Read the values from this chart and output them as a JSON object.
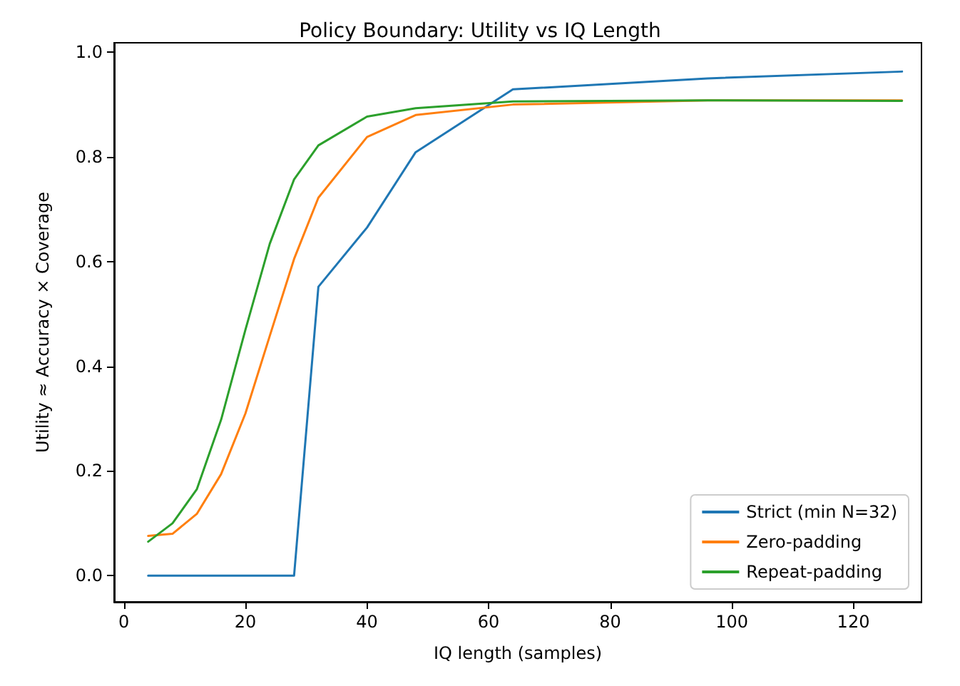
{
  "chart_data": {
    "type": "line",
    "title": "Policy Boundary: Utility vs IQ Length",
    "xlabel": "IQ length (samples)",
    "ylabel": "Utility ≈ Accuracy × Coverage",
    "x": [
      4,
      8,
      12,
      16,
      20,
      24,
      28,
      32,
      40,
      48,
      64,
      96,
      128
    ],
    "series": [
      {
        "name": "Strict (min N=32)",
        "color": "#1f77b4",
        "values": [
          0,
          0,
          0,
          0,
          0,
          0,
          0,
          0.552,
          0.665,
          0.809,
          0.929,
          0.95,
          0.963
        ]
      },
      {
        "name": "Zero-padding",
        "color": "#ff7f0e",
        "values": [
          0.076,
          0.08,
          0.118,
          0.194,
          0.31,
          0.458,
          0.605,
          0.722,
          0.838,
          0.88,
          0.9,
          0.908,
          0.908
        ]
      },
      {
        "name": "Repeat-padding",
        "color": "#2ca02c",
        "values": [
          0.065,
          0.1,
          0.165,
          0.298,
          0.47,
          0.634,
          0.757,
          0.822,
          0.877,
          0.893,
          0.906,
          0.908,
          0.907
        ]
      }
    ],
    "xlim": [
      -1.6,
      131.2
    ],
    "xticks": [
      0,
      20,
      40,
      60,
      80,
      100,
      120
    ],
    "ylim": [
      -0.05,
      1.018
    ],
    "yticks": [
      {
        "value": 0,
        "label": "0.0"
      },
      {
        "value": 0.2,
        "label": "0.2"
      },
      {
        "value": 0.4,
        "label": "0.4"
      },
      {
        "value": 0.6,
        "label": "0.6"
      },
      {
        "value": 0.8,
        "label": "0.8"
      },
      {
        "value": 1,
        "label": "1.0"
      }
    ],
    "grid": false,
    "legend": "bottom right",
    "marker": "none",
    "line_style": "solid"
  }
}
